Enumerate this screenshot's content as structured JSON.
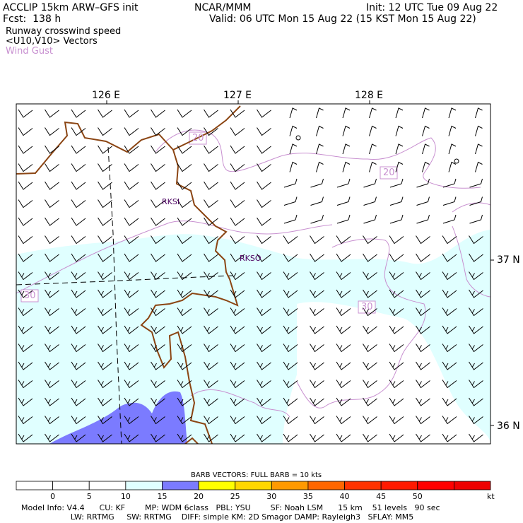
{
  "header": {
    "model_title": "ACCLIP 15km ARW–GFS init",
    "forecast": "Fcst:  138 h",
    "field1": "Runway crosswind speed",
    "field2": "<U10,V10> Vectors",
    "field3": "Wind Gust",
    "center": "NCAR/MMM",
    "init": "Init: 12 UTC Tue 09 Aug 22",
    "valid": "Valid: 06 UTC Mon 15 Aug 22 (15 KST Mon 15 Aug 22)"
  },
  "map": {
    "lon_labels": [
      "126 E",
      "127 E",
      "128 E"
    ],
    "lat_labels": [
      "37 N",
      "36 N"
    ],
    "stations": [
      "RKSI",
      "RKSO"
    ],
    "contour_labels": [
      "20",
      "20",
      "30",
      "30"
    ]
  },
  "colorbar": {
    "title": "BARB VECTORS:  FULL BARB = 10 kts",
    "ticks": [
      "0",
      "5",
      "10",
      "15",
      "20",
      "25",
      "30",
      "35",
      "40",
      "45",
      "50"
    ],
    "unit": "kt",
    "colors": [
      "#ffffff",
      "#ffffff",
      "#ffffff",
      "#e0ffff",
      "#7b7bff",
      "#ffff00",
      "#ffd700",
      "#ff9900",
      "#ff6600",
      "#ff3300",
      "#ff1a00",
      "#ff0000",
      "#ee0000"
    ]
  },
  "footer": {
    "line1": "Model Info: V4.4      CU: KF        MP: WDM 6class   PBL: YSU        SF: Noah LSM      15 km    51 levels   90 sec",
    "line2": "                    LW: RRTMG     SW: RRTMG    DIFF: simple KM: 2D Smagor DAMP: Rayleigh3   SFLAY: MM5"
  },
  "colors": {
    "coast": "#8b4513",
    "gust_contour": "#c890d0",
    "shade_15_20": "#e0ffff",
    "shade_20_25": "#7b7bff"
  }
}
